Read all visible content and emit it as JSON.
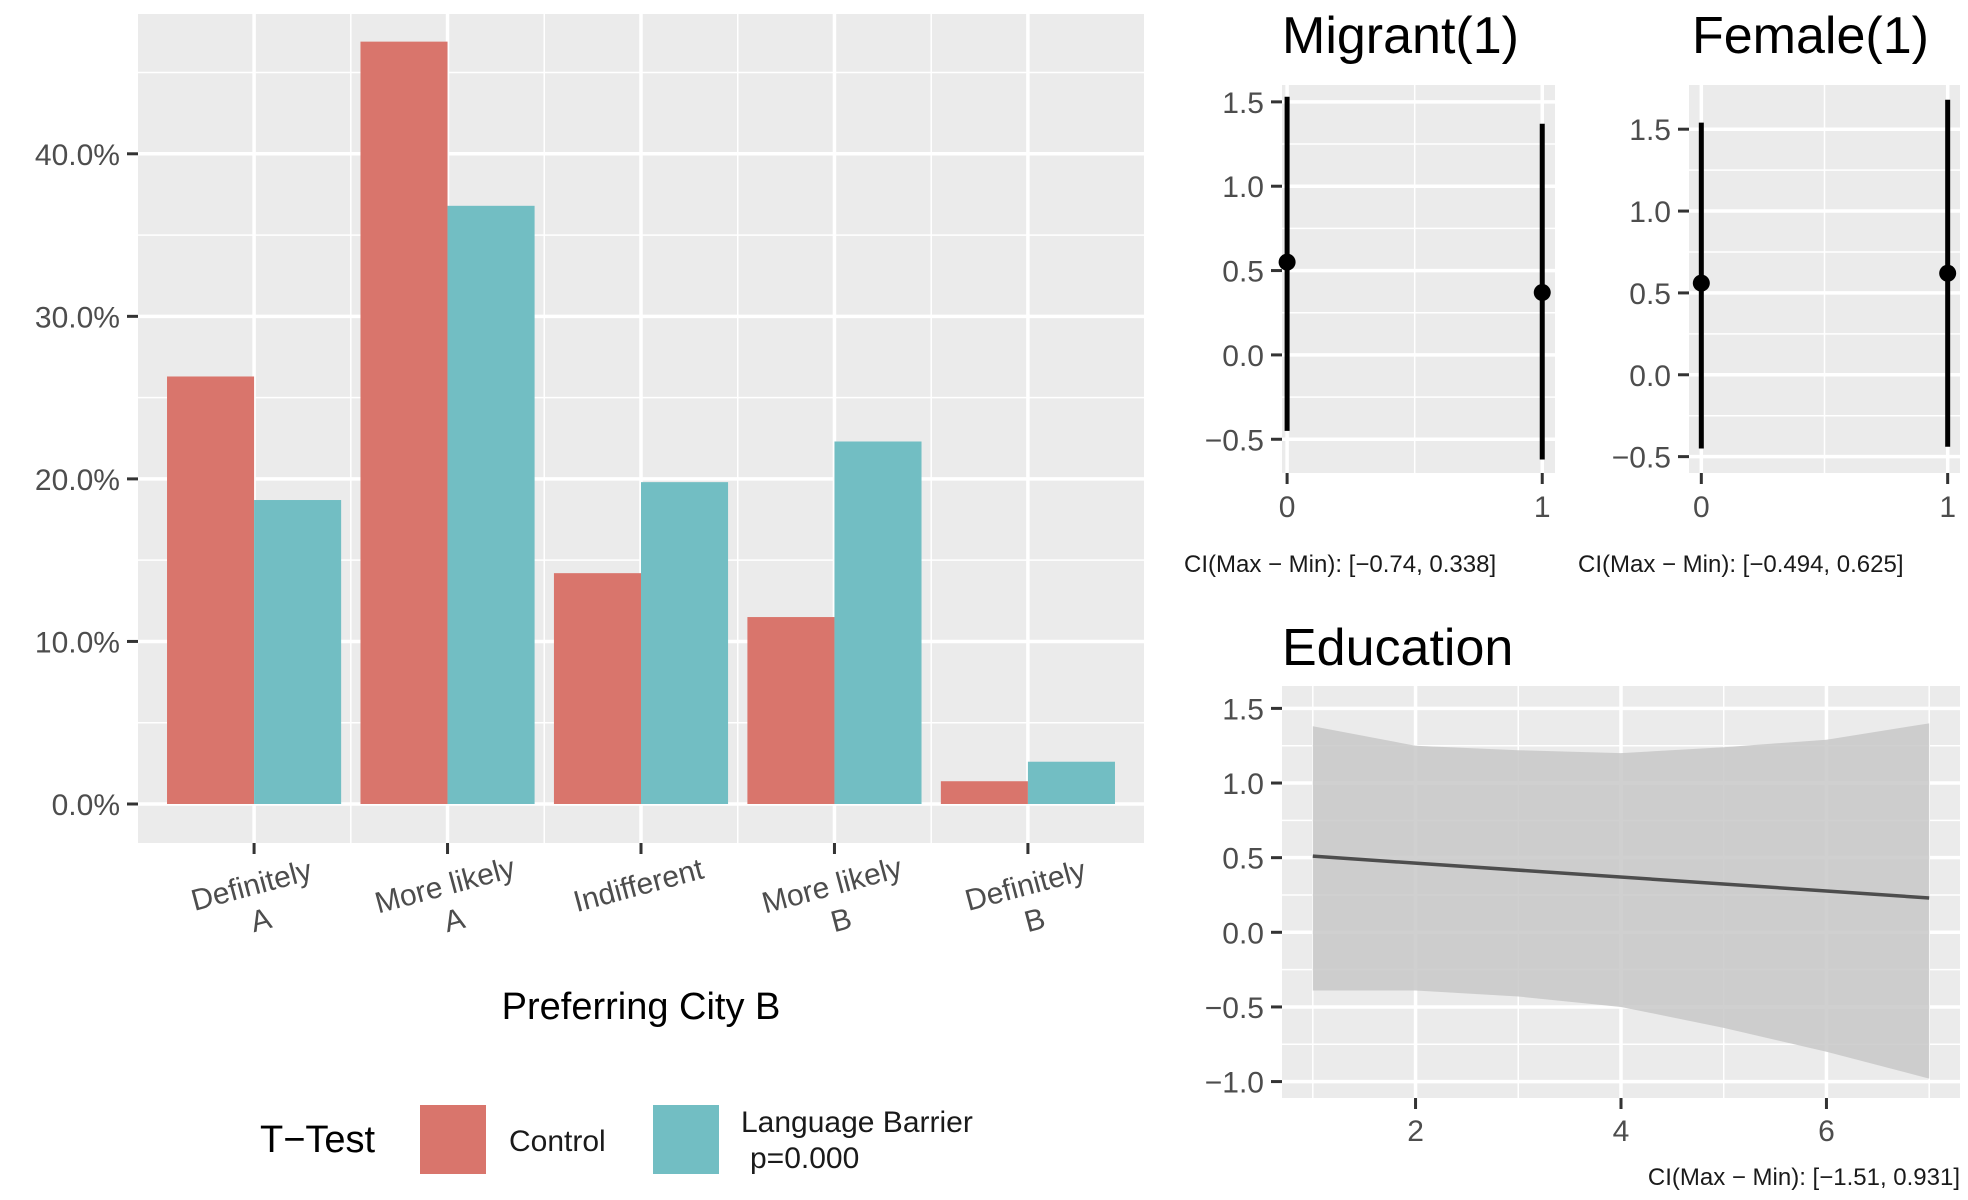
{
  "colors": {
    "panel_bg": "#EBEBEB",
    "grid": "#FFFFFF",
    "control": "#D9756C",
    "language_barrier": "#72BEC3",
    "ci_band": "#C8C8C8",
    "line": "#4D4D4D",
    "point": "#000000"
  },
  "chart_data": [
    {
      "id": "main",
      "type": "bar",
      "xlabel": "Preferring City B",
      "categories": [
        [
          "Definitely",
          "A"
        ],
        [
          "More likely",
          "A"
        ],
        [
          "Indifferent"
        ],
        [
          "More likely",
          "B"
        ],
        [
          "Definitely",
          "B"
        ]
      ],
      "series": [
        {
          "name": "Control",
          "color": "#D9756C",
          "values": [
            26.3,
            46.9,
            14.2,
            11.5,
            1.4
          ]
        },
        {
          "name": "Language Barrier",
          "color": "#72BEC3",
          "values": [
            18.7,
            36.8,
            19.8,
            22.3,
            2.6
          ]
        }
      ],
      "ylim": [
        -2.4,
        48.6
      ],
      "yticks": [
        0,
        10,
        20,
        30,
        40
      ],
      "ytick_labels": [
        "0.0%",
        "10.0%",
        "20.0%",
        "30.0%",
        "40.0%"
      ],
      "grid": true,
      "legend": {
        "title": "T−Test",
        "position": "bottom",
        "entries": [
          {
            "label": "Control",
            "color": "#D9756C"
          },
          {
            "label": "Language Barrier",
            "sublabel": "p=0.000",
            "color": "#72BEC3"
          }
        ]
      }
    },
    {
      "id": "migrant",
      "type": "scatter",
      "title": "Migrant(1)",
      "x": [
        0,
        1
      ],
      "y": [
        0.55,
        0.37
      ],
      "ci_low": [
        -0.45,
        -0.62
      ],
      "ci_high": [
        1.53,
        1.37
      ],
      "xlim": [
        -0.02,
        1.05
      ],
      "ylim": [
        -0.7,
        1.6
      ],
      "xticks": [
        0,
        1
      ],
      "yticks": [
        -0.5,
        0.0,
        0.5,
        1.0,
        1.5
      ],
      "ytick_labels": [
        "−0.5",
        "0.0",
        "0.5",
        "1.0",
        "1.5"
      ],
      "ci_label": "CI(Max − Min): [−0.74, 0.338]"
    },
    {
      "id": "female",
      "type": "scatter",
      "title": "Female(1)",
      "x": [
        0,
        1
      ],
      "y": [
        0.56,
        0.62
      ],
      "ci_low": [
        -0.45,
        -0.44
      ],
      "ci_high": [
        1.54,
        1.68
      ],
      "xlim": [
        -0.05,
        1.05
      ],
      "ylim": [
        -0.6,
        1.77
      ],
      "xticks": [
        0,
        1
      ],
      "yticks": [
        -0.5,
        0.0,
        0.5,
        1.0,
        1.5
      ],
      "ytick_labels": [
        "−0.5",
        "0.0",
        "0.5",
        "1.0",
        "1.5"
      ],
      "ci_label": "CI(Max − Min): [−0.494, 0.625]"
    },
    {
      "id": "education",
      "type": "line",
      "title": "Education",
      "x": [
        1,
        7
      ],
      "y": [
        0.51,
        0.23
      ],
      "band_x": [
        1,
        2,
        3,
        4,
        5,
        6,
        7
      ],
      "band_high": [
        1.38,
        1.25,
        1.22,
        1.2,
        1.24,
        1.29,
        1.4
      ],
      "band_low": [
        -0.39,
        -0.39,
        -0.43,
        -0.5,
        -0.64,
        -0.8,
        -0.98
      ],
      "xlim": [
        0.7,
        7.3
      ],
      "ylim": [
        -1.11,
        1.65
      ],
      "xticks": [
        2,
        4,
        6
      ],
      "yticks": [
        -1.0,
        -0.5,
        0.0,
        0.5,
        1.0,
        1.5
      ],
      "ytick_labels": [
        "−1.0",
        "−0.5",
        "0.0",
        "0.5",
        "1.0",
        "1.5"
      ],
      "ci_label": "CI(Max − Min): [−1.51, 0.931]"
    }
  ]
}
